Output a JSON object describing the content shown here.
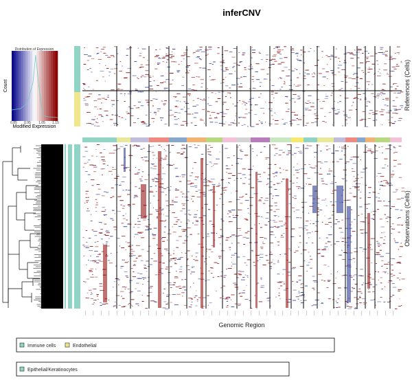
{
  "chart_data": {
    "type": "heatmap",
    "title": "inferCNV",
    "xlabel": "Genomic Region",
    "references_label": "References (Cells)",
    "observations_label": "Observations (Cells)",
    "color_key": {
      "title": "Distribution of Expression",
      "xlabel": "Modified Expression",
      "ylabel": "Count",
      "ticks": [
        "0.85",
        "0.95",
        "1.05",
        "1.15"
      ],
      "range": [
        0.85,
        1.15
      ],
      "low_color": "#0a0a8c",
      "mid_color": "#ffffff",
      "high_color": "#8b0000"
    },
    "reference_groups": [
      {
        "name": "Immune cells",
        "color": "#8fd4c4"
      },
      {
        "name": "Endothelial",
        "color": "#f0e68c"
      }
    ],
    "observation_groups": [
      {
        "name": "Epithelial/Keratinocytes",
        "color": "#8fd4c4"
      }
    ],
    "chromosome_colors": [
      "#8fd4c4",
      "#e8e89a",
      "#c0bcdc",
      "#f08a80",
      "#86a8cc",
      "#f2b274",
      "#b8d880",
      "#f4c2d8",
      "#d4d4d4",
      "#b87cbc",
      "#c8e8c0",
      "#f8e870"
    ]
  }
}
